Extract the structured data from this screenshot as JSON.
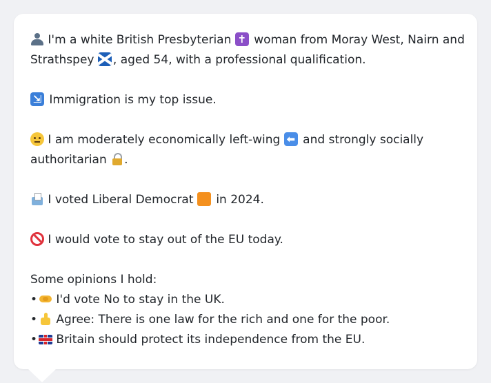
{
  "profile": {
    "intro_line1_a": "I'm a white British Presbyterian",
    "intro_line1_b": "woman from Moray West, Nairn and",
    "intro_line2_a": "Strathspey",
    "intro_line2_b": ", aged 54, with a professional qualification.",
    "top_issue": "Immigration is my top issue.",
    "economics_a": "I am moderately economically left-wing",
    "economics_b": "and strongly socially",
    "economics_c": "authoritarian",
    "economics_d": ".",
    "vote_a": "I voted Liberal Democrat",
    "vote_b": "in 2024.",
    "eu_stance": "I would vote to stay out of the EU today.",
    "opinions_heading": "Some opinions I hold:",
    "bullet_symbol": "•",
    "opinions": [
      "I'd vote No to stay in the UK.",
      "Agree: There is one law for the rich and one for the poor.",
      "Britain should protect its independence from the EU."
    ]
  },
  "icons": {
    "cross_glyph": "✝",
    "immigration_glyph": "⇲",
    "arrow_glyph": "⬅"
  },
  "colors": {
    "background": "#f0f1f4",
    "card": "#ffffff",
    "text": "#22262b",
    "lib_dem_orange": "#f4901e"
  }
}
